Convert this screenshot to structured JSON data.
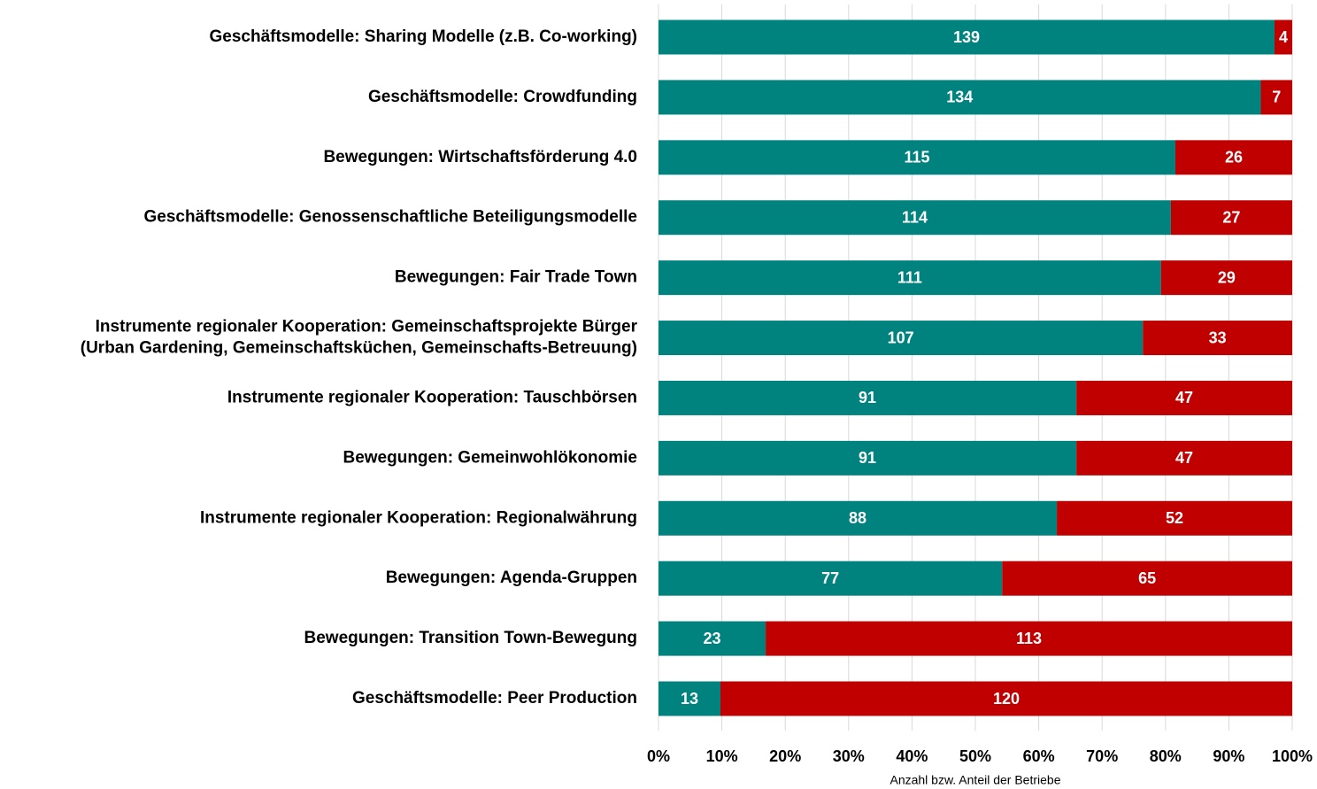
{
  "chart_data": {
    "type": "bar_percent_stacked",
    "orientation": "horizontal",
    "grid": true,
    "x_label": "Anzahl bzw. Anteil der Betriebe",
    "categories": [
      "Geschäftsmodelle: Sharing Modelle (z.B. Co-working)",
      "Geschäftsmodelle: Crowdfunding",
      "Bewegungen: Wirtschaftsförderung 4.0",
      "Geschäftsmodelle: Genossenschaftliche Beteiligungsmodelle",
      "Bewegungen: Fair Trade Town",
      "Instrumente regionaler Kooperation: Gemeinschaftsprojekte Bürger\n(Urban Gardening, Gemeinschaftsküchen, Gemeinschafts-Betreuung)",
      "Instrumente regionaler Kooperation: Tauschbörsen",
      "Bewegungen: Gemeinwohlökonomie",
      "Instrumente regionaler Kooperation: Regionalwährung",
      "Bewegungen: Agenda-Gruppen",
      "Bewegungen: Transition Town-Bewegung",
      "Geschäftsmodelle: Peer Production"
    ],
    "series": [
      {
        "color": "#00827f",
        "values": [
          139,
          134,
          115,
          114,
          111,
          107,
          91,
          91,
          88,
          77,
          23,
          13
        ]
      },
      {
        "color": "#c00000",
        "values": [
          4,
          7,
          26,
          27,
          29,
          33,
          47,
          47,
          52,
          65,
          113,
          120
        ]
      }
    ],
    "xlim": [
      0,
      100
    ],
    "xticks": [
      {
        "value": 0,
        "label": "0%"
      },
      {
        "value": 10,
        "label": "10%"
      },
      {
        "value": 20,
        "label": "20%"
      },
      {
        "value": 30,
        "label": "30%"
      },
      {
        "value": 40,
        "label": "40%"
      },
      {
        "value": 50,
        "label": "50%"
      },
      {
        "value": 60,
        "label": "60%"
      },
      {
        "value": 70,
        "label": "70%"
      },
      {
        "value": 80,
        "label": "80%"
      },
      {
        "value": 90,
        "label": "90%"
      },
      {
        "value": 100,
        "label": "100%"
      }
    ]
  }
}
